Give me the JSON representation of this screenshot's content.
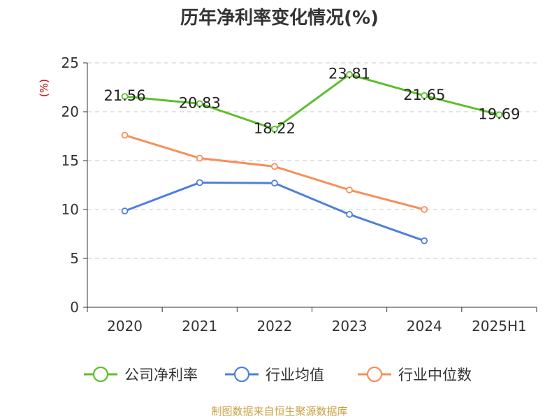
{
  "chart_data": {
    "type": "line",
    "title": "历年净利率变化情况(%)",
    "ylabel": "(%)",
    "xlabel": "",
    "categories": [
      "2020",
      "2021",
      "2022",
      "2023",
      "2024",
      "2025H1"
    ],
    "ylim": [
      0,
      25
    ],
    "yticks": [
      0,
      5,
      10,
      15,
      20,
      25
    ],
    "grid": "horizontal-dashed",
    "legend_position": "bottom",
    "series": [
      {
        "name": "公司净利率",
        "color": "#5cbf2a",
        "values": [
          21.56,
          20.83,
          18.22,
          23.81,
          21.65,
          19.69
        ],
        "labels": [
          "21.56",
          "20.83",
          "18.22",
          "23.81",
          "21.65",
          "19.69"
        ]
      },
      {
        "name": "行业均值",
        "color": "#4f7fdc",
        "values": [
          9.85,
          12.75,
          12.7,
          9.5,
          6.8,
          null
        ]
      },
      {
        "name": "行业中位数",
        "color": "#f59059",
        "values": [
          17.6,
          15.25,
          14.4,
          12.0,
          10.0,
          null
        ]
      }
    ]
  },
  "source": "制图数据来自恒生聚源数据库"
}
